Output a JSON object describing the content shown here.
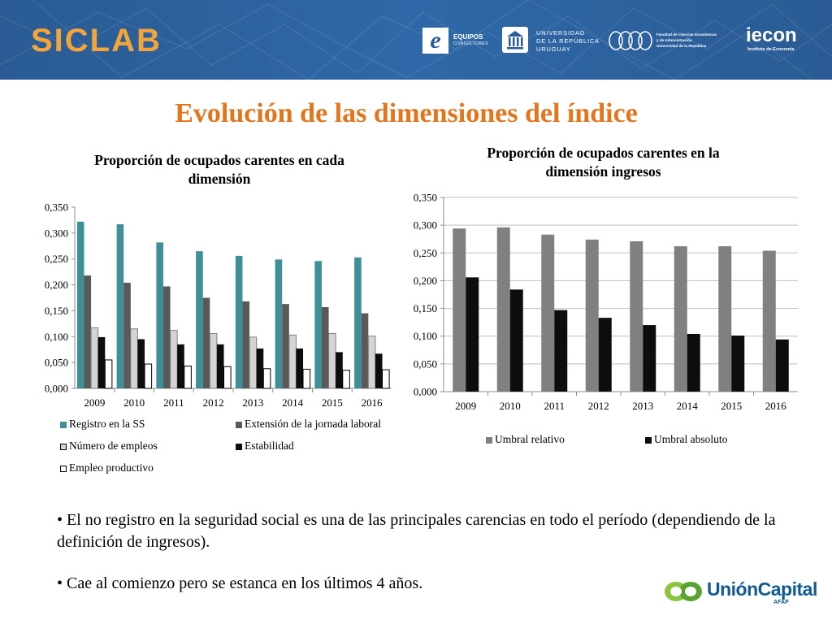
{
  "header": {
    "brand": "SICLAB",
    "logos": {
      "equipos": {
        "mark": "e",
        "line1": "EQUIPOS",
        "line2": "CONSULTORES"
      },
      "udelar": {
        "line1": "UNIVERSIDAD",
        "line2": "DE LA REPÚBLICA",
        "line3": "URUGUAY"
      },
      "fcea": {
        "line1": "Facultad de Ciencias Económicas",
        "line2": "y de Administración",
        "line3": "Universidad de la República"
      },
      "iecon": {
        "name": "iecon",
        "subtitle": "Instituto de Economía"
      }
    }
  },
  "slide_title": "Evolución de las dimensiones del índice",
  "chart_data": [
    {
      "type": "bar",
      "title": "Proporción de ocupados carentes en cada dimensión",
      "categories": [
        "2009",
        "2010",
        "2011",
        "2012",
        "2013",
        "2014",
        "2015",
        "2016"
      ],
      "ylim": [
        0,
        0.35
      ],
      "yticks": [
        "0,000",
        "0,050",
        "0,100",
        "0,150",
        "0,200",
        "0,250",
        "0,300",
        "0,350"
      ],
      "grid": false,
      "legend_position": "bottom",
      "series": [
        {
          "name": "Registro en la SS",
          "color": "#3f8f99",
          "values": [
            0.322,
            0.317,
            0.282,
            0.265,
            0.256,
            0.249,
            0.246,
            0.253
          ]
        },
        {
          "name": "Extensión de la jornada laboral",
          "color": "#595959",
          "values": [
            0.218,
            0.204,
            0.197,
            0.175,
            0.168,
            0.163,
            0.157,
            0.145
          ]
        },
        {
          "name": "Número de empleos",
          "color": "#d4d4d4",
          "values": [
            0.117,
            0.115,
            0.112,
            0.106,
            0.099,
            0.103,
            0.106,
            0.101
          ]
        },
        {
          "name": "Estabilidad",
          "color": "#0d0d0d",
          "values": [
            0.099,
            0.095,
            0.085,
            0.085,
            0.077,
            0.077,
            0.07,
            0.067
          ]
        },
        {
          "name": "Empleo productivo",
          "color": "#ffffff",
          "values": [
            0.055,
            0.047,
            0.043,
            0.042,
            0.038,
            0.037,
            0.035,
            0.036
          ]
        }
      ]
    },
    {
      "type": "bar",
      "title": "Proporción de ocupados carentes en la dimensión ingresos",
      "categories": [
        "2009",
        "2010",
        "2011",
        "2012",
        "2013",
        "2014",
        "2015",
        "2016"
      ],
      "ylim": [
        0,
        0.35
      ],
      "yticks": [
        "0,000",
        "0,050",
        "0,100",
        "0,150",
        "0,200",
        "0,250",
        "0,300",
        "0,350"
      ],
      "grid": true,
      "legend_position": "bottom",
      "series": [
        {
          "name": "Umbral relativo",
          "color": "#808080",
          "values": [
            0.294,
            0.296,
            0.283,
            0.274,
            0.271,
            0.262,
            0.262,
            0.254
          ]
        },
        {
          "name": "Umbral absoluto",
          "color": "#0d0d0d",
          "values": [
            0.206,
            0.184,
            0.147,
            0.133,
            0.12,
            0.104,
            0.101,
            0.094
          ]
        }
      ]
    }
  ],
  "bullets": [
    "• El no registro en la seguridad social es una de las principales carencias en todo el período (dependiendo de la definición de ingresos).",
    "• Cae al comienzo pero se estanca en los últimos 4 años."
  ],
  "footer_logo": {
    "name": "UniónCapital",
    "subtitle": "AFAP"
  }
}
